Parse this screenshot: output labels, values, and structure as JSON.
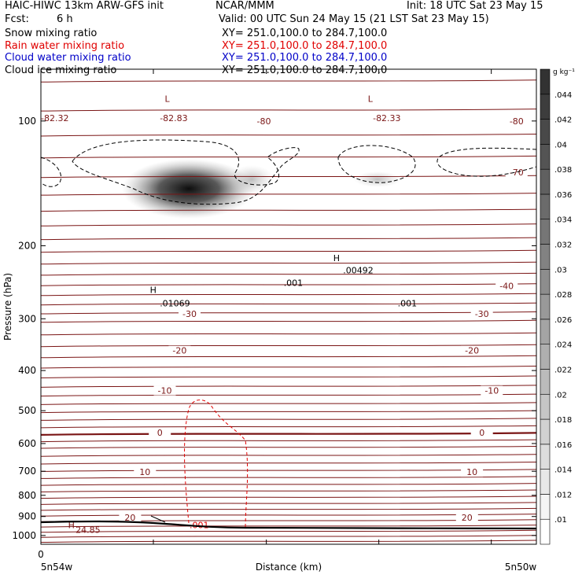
{
  "header": {
    "title": "HAIC-HIWC 13km ARW-GFS init",
    "center": "NCAR/MMM",
    "init": "Init: 18 UTC Sat 23 May 15",
    "fcst_label": "Fcst:",
    "fcst_value": "6 h",
    "valid": "Valid: 00 UTC Sun 24 May 15 (21 LST Sat 23 May 15)"
  },
  "fields": [
    {
      "name": "Snow mixing ratio",
      "xy": "XY= 251.0,100.0 to 284.7,100.0",
      "color": "#000000"
    },
    {
      "name": "Rain water mixing ratio",
      "xy": "XY= 251.0,100.0 to 284.7,100.0",
      "color": "#e00000"
    },
    {
      "name": "Cloud water mixing ratio",
      "xy": "XY= 251.0,100.0 to 284.7,100.0",
      "color": "#0000c8"
    },
    {
      "name": "Cloud ice mixing ratio",
      "xy": "XY= 251.0,100.0 to 284.7,100.0",
      "color": "#000000"
    }
  ],
  "chart_data": {
    "type": "cross-section",
    "ylabel": "Pressure (hPa)",
    "xlabel": "Distance (km)",
    "x_tick_labels": [
      "0"
    ],
    "x_end_labels": [
      "5n54w",
      "5n50w"
    ],
    "y_ticks": [
      100,
      200,
      300,
      400,
      500,
      600,
      700,
      800,
      900,
      1000
    ],
    "y_scale": "log",
    "ylim": [
      1050,
      75
    ],
    "temperature_contours": {
      "color": "#7a1515",
      "interval": 5,
      "labels": [
        {
          "text": "-80",
          "p": 100,
          "x": 0.45
        },
        {
          "text": "-80",
          "p": 100,
          "x": 0.96
        },
        {
          "text": "-70",
          "p": 133,
          "x": 0.96
        },
        {
          "text": "-40",
          "p": 250,
          "x": 0.94
        },
        {
          "text": "-30",
          "p": 292,
          "x": 0.3
        },
        {
          "text": "-30",
          "p": 292,
          "x": 0.89
        },
        {
          "text": "-20",
          "p": 358,
          "x": 0.28
        },
        {
          "text": "-20",
          "p": 358,
          "x": 0.87
        },
        {
          "text": "-10",
          "p": 447,
          "x": 0.25
        },
        {
          "text": "-10",
          "p": 447,
          "x": 0.91
        },
        {
          "text": "0",
          "p": 564,
          "x": 0.24
        },
        {
          "text": "0",
          "p": 564,
          "x": 0.89
        },
        {
          "text": "10",
          "p": 703,
          "x": 0.21
        },
        {
          "text": "10",
          "p": 703,
          "x": 0.87
        },
        {
          "text": "20",
          "p": 905,
          "x": 0.18
        },
        {
          "text": "20",
          "p": 905,
          "x": 0.86
        }
      ]
    },
    "extrema": [
      {
        "text": "L",
        "p": 90,
        "x": 0.25,
        "color": "#7a1515"
      },
      {
        "text": "-82.83",
        "p": 100,
        "x": 0.24,
        "color": "#7a1515"
      },
      {
        "text": "L",
        "p": 90,
        "x": 0.66,
        "color": "#7a1515"
      },
      {
        "text": "-82.33",
        "p": 100,
        "x": 0.67,
        "color": "#7a1515"
      },
      {
        "text": "-82.32",
        "p": 100,
        "x": 0.0,
        "color": "#7a1515"
      },
      {
        "text": "H",
        "p": 960,
        "x": 0.055,
        "color": "#7a1515"
      },
      {
        "text": "24.85",
        "p": 985,
        "x": 0.07,
        "color": "#7a1515"
      },
      {
        "text": "H",
        "p": 260,
        "x": 0.22,
        "color": "#000000"
      },
      {
        "text": ".01069",
        "p": 280,
        "x": 0.24,
        "color": "#000000"
      },
      {
        "text": "H",
        "p": 218,
        "x": 0.59,
        "color": "#000000"
      },
      {
        "text": ".00492",
        "p": 233,
        "x": 0.61,
        "color": "#000000"
      },
      {
        "text": ".001",
        "p": 250,
        "x": 0.49,
        "color": "#000000"
      },
      {
        "text": ".001",
        "p": 280,
        "x": 0.72,
        "color": "#000000"
      },
      {
        "text": ".001",
        "p": 960,
        "x": 0.3,
        "color": "#e00000"
      }
    ],
    "colorbar": {
      "unit": "g kg⁻¹",
      "labels": [
        ".01",
        ".012",
        ".014",
        ".016",
        ".018",
        ".02",
        ".022",
        ".024",
        ".026",
        ".028",
        ".03",
        ".032",
        ".034",
        ".036",
        ".038",
        ".04",
        ".042",
        ".044"
      ]
    }
  }
}
